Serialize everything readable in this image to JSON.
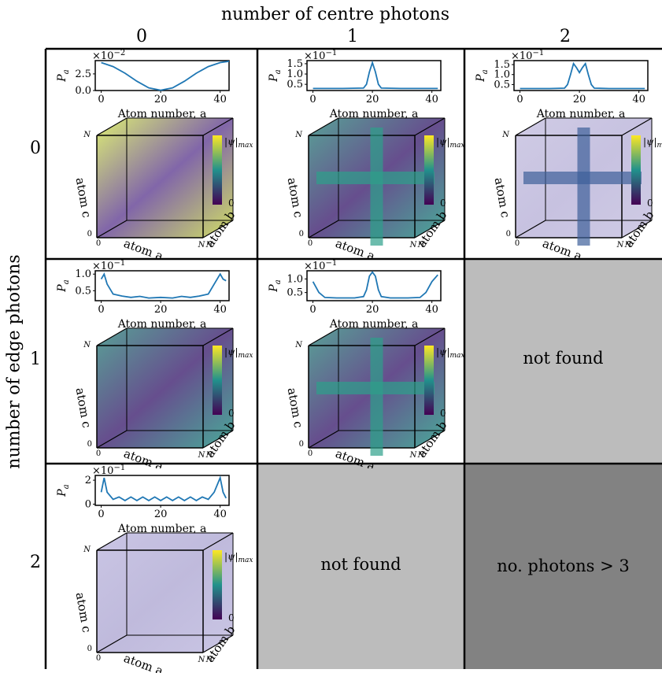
{
  "column_axis_label": "number of centre photons",
  "row_axis_label": "number of edge photons",
  "column_values": [
    "0",
    "1",
    "2"
  ],
  "row_values": [
    "0",
    "1",
    "2"
  ],
  "common": {
    "xlabel": "Atom number, a",
    "ylabel": "P",
    "ylabel_sub": "a",
    "colorbar_max": "|ψ|",
    "colorbar_max_sub": "max",
    "colorbar_min": "0",
    "cube_axis_c": "atom c",
    "cube_axis_a": "atom a",
    "cube_axis_b": "atom b",
    "cube_tick_n": "N",
    "cube_tick_0": "0",
    "x_ticks": [
      "0",
      "20",
      "40"
    ],
    "colors": {
      "line": "#1f77b4",
      "grid": "#000000",
      "viridis_top": "#fde725",
      "viridis_mid": "#21918c",
      "viridis_bottom": "#440154",
      "cube_fill": "#b9b4d8"
    }
  },
  "cells": [
    {
      "row": 0,
      "col": 0,
      "status": "found",
      "chart_data": {
        "type": "line",
        "xlabel": "Atom number, a",
        "ylabel": "P_a",
        "scale_text": "×10",
        "scale_exp": "−2",
        "y_ticks": [
          "0.0",
          "2.5"
        ],
        "y_tick_values": [
          0,
          2.5
        ],
        "ylim": [
          0,
          4.5
        ],
        "xlim": [
          -2,
          43
        ],
        "x": [
          0,
          4,
          8,
          12,
          16,
          20,
          24,
          28,
          32,
          36,
          40,
          43
        ],
        "y": [
          4.2,
          3.6,
          2.6,
          1.4,
          0.4,
          0.05,
          0.4,
          1.4,
          2.6,
          3.6,
          4.2,
          4.4
        ]
      }
    },
    {
      "row": 0,
      "col": 1,
      "status": "found",
      "chart_data": {
        "type": "line",
        "xlabel": "Atom number, a",
        "ylabel": "P_a",
        "scale_text": "×10",
        "scale_exp": "−1",
        "y_ticks": [
          "0.5",
          "1.0",
          "1.5"
        ],
        "y_tick_values": [
          0.5,
          1.0,
          1.5
        ],
        "ylim": [
          0.2,
          1.65
        ],
        "xlim": [
          -2,
          43
        ],
        "x": [
          0,
          10,
          17,
          18,
          19,
          20,
          21,
          22,
          23,
          30,
          42
        ],
        "y": [
          0.3,
          0.3,
          0.32,
          0.5,
          1.1,
          1.55,
          1.1,
          0.5,
          0.32,
          0.3,
          0.3
        ]
      }
    },
    {
      "row": 0,
      "col": 2,
      "status": "found",
      "chart_data": {
        "type": "line",
        "xlabel": "Atom number, a",
        "ylabel": "P_a",
        "scale_text": "×10",
        "scale_exp": "−1",
        "y_ticks": [
          "0.5",
          "1.0",
          "1.5"
        ],
        "y_tick_values": [
          0.5,
          1.0,
          1.5
        ],
        "ylim": [
          0.2,
          1.7
        ],
        "xlim": [
          -2,
          43
        ],
        "x": [
          0,
          10,
          15,
          16,
          17,
          18,
          19,
          20,
          21,
          22,
          23,
          24,
          25,
          30,
          42
        ],
        "y": [
          0.3,
          0.3,
          0.32,
          0.5,
          1.0,
          1.55,
          1.35,
          1.1,
          1.35,
          1.55,
          1.0,
          0.5,
          0.32,
          0.3,
          0.3
        ]
      }
    },
    {
      "row": 1,
      "col": 0,
      "status": "found",
      "chart_data": {
        "type": "line",
        "xlabel": "Atom number, a",
        "ylabel": "P_a",
        "scale_text": "×10",
        "scale_exp": "−1",
        "y_ticks": [
          "0.5",
          "1.0"
        ],
        "y_tick_values": [
          0.5,
          1.0
        ],
        "ylim": [
          0.2,
          1.1
        ],
        "xlim": [
          -2,
          43
        ],
        "x": [
          0,
          1,
          2,
          4,
          7,
          10,
          13,
          16,
          20,
          24,
          27,
          30,
          33,
          36,
          38,
          40,
          41,
          42
        ],
        "y": [
          0.85,
          1.0,
          0.7,
          0.4,
          0.34,
          0.3,
          0.33,
          0.28,
          0.3,
          0.28,
          0.33,
          0.3,
          0.34,
          0.4,
          0.7,
          1.0,
          0.85,
          0.8
        ]
      }
    },
    {
      "row": 1,
      "col": 1,
      "status": "found",
      "chart_data": {
        "type": "line",
        "xlabel": "Atom number, a",
        "ylabel": "P_a",
        "scale_text": "×10",
        "scale_exp": "−1",
        "y_ticks": [
          "0.5",
          "1.0"
        ],
        "y_tick_values": [
          0.5,
          1.0
        ],
        "ylim": [
          0.2,
          1.3
        ],
        "xlim": [
          -2,
          43
        ],
        "x": [
          0,
          2,
          4,
          8,
          14,
          17,
          18,
          19,
          20,
          21,
          22,
          23,
          26,
          32,
          36,
          38,
          40,
          42
        ],
        "y": [
          0.9,
          0.5,
          0.32,
          0.3,
          0.3,
          0.35,
          0.6,
          1.1,
          1.25,
          1.1,
          0.6,
          0.35,
          0.3,
          0.3,
          0.32,
          0.5,
          0.9,
          1.15
        ]
      }
    },
    {
      "row": 1,
      "col": 2,
      "status": "not found",
      "message": "not found"
    },
    {
      "row": 2,
      "col": 0,
      "status": "found",
      "chart_data": {
        "type": "line",
        "xlabel": "Atom number, a",
        "ylabel": "P_a",
        "scale_text": "×10",
        "scale_exp": "−1",
        "y_ticks": [
          "0",
          "2"
        ],
        "y_tick_values": [
          0,
          2
        ],
        "ylim": [
          -0.1,
          2.4
        ],
        "xlim": [
          -2,
          43
        ],
        "x": [
          0,
          1,
          2,
          4,
          6,
          8,
          10,
          12,
          14,
          16,
          18,
          20,
          22,
          24,
          26,
          28,
          30,
          32,
          34,
          36,
          38,
          40,
          41,
          42
        ],
        "y": [
          1.0,
          2.2,
          1.0,
          0.4,
          0.6,
          0.3,
          0.6,
          0.3,
          0.6,
          0.3,
          0.6,
          0.3,
          0.6,
          0.3,
          0.6,
          0.3,
          0.6,
          0.3,
          0.6,
          0.4,
          1.0,
          2.2,
          1.0,
          0.5
        ]
      }
    },
    {
      "row": 2,
      "col": 1,
      "status": "not found",
      "message": "not found"
    },
    {
      "row": 2,
      "col": 2,
      "status": "excluded",
      "message": "no. photons > 3"
    }
  ]
}
